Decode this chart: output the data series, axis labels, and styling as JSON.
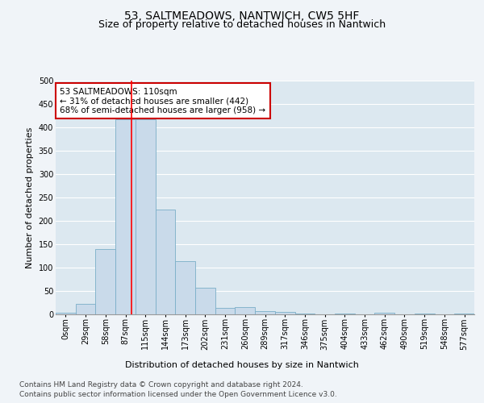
{
  "title": "53, SALTMEADOWS, NANTWICH, CW5 5HF",
  "subtitle": "Size of property relative to detached houses in Nantwich",
  "xlabel": "Distribution of detached houses by size in Nantwich",
  "ylabel": "Number of detached properties",
  "footer_line1": "Contains HM Land Registry data © Crown copyright and database right 2024.",
  "footer_line2": "Contains public sector information licensed under the Open Government Licence v3.0.",
  "bin_labels": [
    "0sqm",
    "29sqm",
    "58sqm",
    "87sqm",
    "115sqm",
    "144sqm",
    "173sqm",
    "202sqm",
    "231sqm",
    "260sqm",
    "289sqm",
    "317sqm",
    "346sqm",
    "375sqm",
    "404sqm",
    "433sqm",
    "462sqm",
    "490sqm",
    "519sqm",
    "548sqm",
    "577sqm"
  ],
  "bar_values": [
    4,
    22,
    139,
    418,
    418,
    225,
    114,
    57,
    13,
    15,
    7,
    5,
    2,
    0,
    2,
    0,
    3,
    0,
    2,
    0,
    2
  ],
  "bar_color": "#c9daea",
  "bar_edge_color": "#7aaec8",
  "bar_width": 1.0,
  "property_bin_index": 3.8,
  "red_line_color": "#ff0000",
  "annotation_text": "53 SALTMEADOWS: 110sqm\n← 31% of detached houses are smaller (442)\n68% of semi-detached houses are larger (958) →",
  "annotation_box_facecolor": "#ffffff",
  "annotation_box_edgecolor": "#cc0000",
  "ylim": [
    0,
    500
  ],
  "yticks": [
    0,
    50,
    100,
    150,
    200,
    250,
    300,
    350,
    400,
    450,
    500
  ],
  "fig_facecolor": "#f0f4f8",
  "plot_bg_color": "#dce8f0",
  "grid_color": "#ffffff",
  "title_fontsize": 10,
  "subtitle_fontsize": 9,
  "axis_label_fontsize": 8,
  "tick_fontsize": 7,
  "annotation_fontsize": 7.5,
  "footer_fontsize": 6.5
}
